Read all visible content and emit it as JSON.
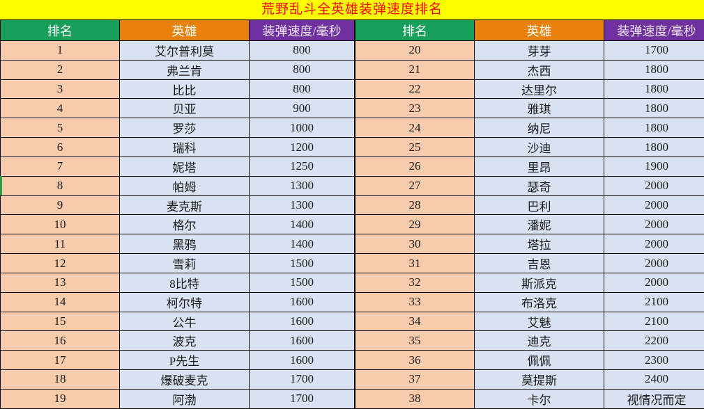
{
  "title": "荒野乱斗全英雄装弹速度排名",
  "headers": {
    "rank": "排名",
    "hero": "英雄",
    "speed": "装弹速度/毫秒"
  },
  "colors": {
    "title_bg": "#FFFF00",
    "title_text": "#FF0000",
    "rank_header_bg": "#18A05A",
    "hero_header_bg": "#E8820C",
    "speed_header_bg": "#7030A0",
    "header_text": "#FFFFFF",
    "rank_cell_bg": "#F8CBAD",
    "data_cell_bg": "#D9E2F3",
    "grid_line": "#000000"
  },
  "chart_data": {
    "type": "table",
    "title": "荒野乱斗全英雄装弹速度排名",
    "columns": [
      "排名",
      "英雄",
      "装弹速度/毫秒"
    ],
    "layout": "two side-by-side tables, ranks 1-19 left, 20-38 right",
    "rows": [
      [
        "1",
        "艾尔普利莫",
        "800"
      ],
      [
        "2",
        "弗兰肯",
        "800"
      ],
      [
        "3",
        "比比",
        "800"
      ],
      [
        "4",
        "贝亚",
        "900"
      ],
      [
        "5",
        "罗莎",
        "1000"
      ],
      [
        "6",
        "瑞科",
        "1200"
      ],
      [
        "7",
        "妮塔",
        "1250"
      ],
      [
        "8",
        "帕姆",
        "1300"
      ],
      [
        "9",
        "麦克斯",
        "1300"
      ],
      [
        "10",
        "格尔",
        "1400"
      ],
      [
        "11",
        "黑鸦",
        "1400"
      ],
      [
        "12",
        "雪莉",
        "1500"
      ],
      [
        "13",
        "8比特",
        "1500"
      ],
      [
        "14",
        "柯尔特",
        "1600"
      ],
      [
        "15",
        "公牛",
        "1600"
      ],
      [
        "16",
        "波克",
        "1600"
      ],
      [
        "17",
        "P先生",
        "1600"
      ],
      [
        "18",
        "爆破麦克",
        "1700"
      ],
      [
        "19",
        "阿渤",
        "1700"
      ],
      [
        "20",
        "芽芽",
        "1700"
      ],
      [
        "21",
        "杰西",
        "1800"
      ],
      [
        "22",
        "达里尔",
        "1800"
      ],
      [
        "23",
        "雅琪",
        "1800"
      ],
      [
        "24",
        "纳尼",
        "1800"
      ],
      [
        "25",
        "沙迪",
        "1800"
      ],
      [
        "26",
        "里昂",
        "1900"
      ],
      [
        "27",
        "瑟奇",
        "2000"
      ],
      [
        "28",
        "巴利",
        "2000"
      ],
      [
        "29",
        "潘妮",
        "2000"
      ],
      [
        "30",
        "塔拉",
        "2000"
      ],
      [
        "31",
        "吉恩",
        "2000"
      ],
      [
        "32",
        "斯派克",
        "2000"
      ],
      [
        "33",
        "布洛克",
        "2100"
      ],
      [
        "34",
        "艾魅",
        "2100"
      ],
      [
        "35",
        "迪克",
        "2200"
      ],
      [
        "36",
        "佩佩",
        "2300"
      ],
      [
        "37",
        "莫提斯",
        "2400"
      ],
      [
        "38",
        "卡尔",
        "视情况而定"
      ]
    ]
  }
}
